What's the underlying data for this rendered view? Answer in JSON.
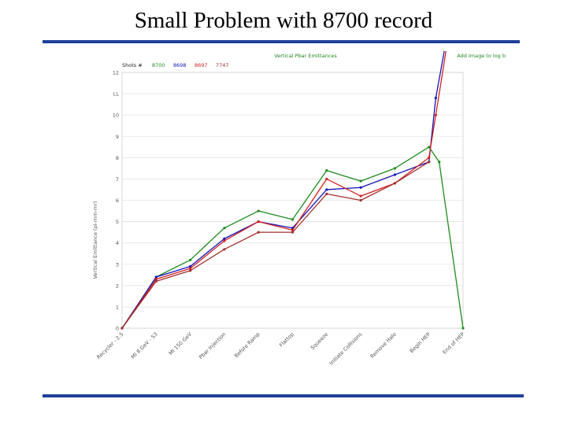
{
  "slide": {
    "title": "Small Problem with 8700 record"
  },
  "colors": {
    "rule": "#1f3f99",
    "green": "#1e8a1e",
    "blue": "#1515b8",
    "red": "#d42020",
    "brown": "#a03030",
    "grid": "#e3e3e3"
  },
  "chart_data": {
    "type": "line",
    "title": "Vertical Pbar Emittances",
    "link_text": "Add image to log b",
    "legend_label": "Shots #",
    "xlabel": "",
    "ylabel": "Vertical Emittance (pi-mm-mr)",
    "ylim": [
      0,
      12
    ],
    "yticks": [
      0,
      1,
      2,
      3,
      4,
      5,
      6,
      7,
      8,
      9,
      10,
      11,
      12
    ],
    "ytick_labels": [
      "0",
      "1",
      "2",
      "3",
      "4",
      "5",
      "6",
      "7",
      "8",
      "9",
      "10",
      "LL",
      "12"
    ],
    "categories": [
      "Recycler - 2.5",
      "MI 8 GeV - 53",
      "MI 150 GeV",
      "Pbar Injection",
      "Before Ramp",
      "Flattop",
      "Squeeze",
      "Initiate Collisions",
      "Remove Halo",
      "Begin HEP",
      "End of HEP"
    ],
    "x_positions": [
      0,
      1,
      2,
      3,
      4,
      5,
      6,
      7,
      8,
      9,
      10
    ],
    "series": [
      {
        "name": "8700",
        "color": "#1e8a1e",
        "x": [
          0,
          1,
          2,
          3,
          4,
          5,
          6,
          7,
          8,
          9,
          9.3,
          10
        ],
        "values": [
          0,
          2.4,
          3.2,
          4.7,
          5.5,
          5.1,
          7.4,
          6.9,
          7.5,
          8.5,
          7.8,
          0
        ]
      },
      {
        "name": "8698",
        "color": "#1515b8",
        "x": [
          0,
          1,
          2,
          3,
          4,
          5,
          6,
          7,
          8,
          9,
          9.2,
          9.45
        ],
        "values": [
          0,
          2.4,
          2.9,
          4.2,
          5.0,
          4.7,
          6.5,
          6.6,
          7.2,
          7.8,
          10.8,
          13.0
        ]
      },
      {
        "name": "8697",
        "color": "#d42020",
        "x": [
          0,
          1,
          2,
          3,
          4,
          5,
          6,
          7,
          8,
          9,
          9.2,
          9.5
        ],
        "values": [
          0,
          2.3,
          2.8,
          4.1,
          5.0,
          4.6,
          7.0,
          6.2,
          6.8,
          8.0,
          10.0,
          13.0
        ]
      },
      {
        "name": "7747",
        "color": "#a03030",
        "x": [
          0,
          1,
          2,
          3,
          4,
          5,
          6,
          7,
          8,
          9
        ],
        "values": [
          0,
          2.2,
          2.7,
          3.7,
          4.5,
          4.5,
          6.3,
          6.0,
          6.8,
          7.8
        ]
      }
    ]
  }
}
